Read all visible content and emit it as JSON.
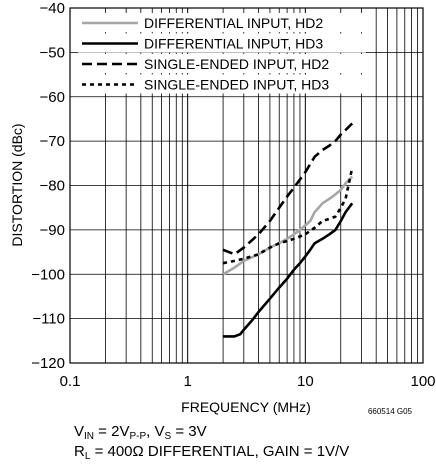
{
  "chart_data": {
    "type": "line",
    "xlabel": "FREQUENCY (MHz)",
    "ylabel": "DISTORTION (dBc)",
    "xscale": "log",
    "xlim": [
      0.1,
      100
    ],
    "ylim": [
      -120,
      -40
    ],
    "x_tick_labels": [
      "0.1",
      "1",
      "10",
      "100"
    ],
    "y_tick_labels": [
      "−120",
      "−110",
      "−100",
      "−90",
      "−80",
      "−70",
      "−60",
      "−50",
      "−40"
    ],
    "grid": true,
    "legend_position": "top-right",
    "figure_id": "660514 G05",
    "series": [
      {
        "name": "DIFFERENTIAL INPUT, HD2",
        "color": "#a6a6a6",
        "style": "solid",
        "x": [
          2,
          2.5,
          3,
          4,
          5,
          6,
          7,
          8,
          9,
          10,
          11,
          12,
          14,
          16,
          18,
          20,
          22,
          25
        ],
        "y": [
          -100,
          -98.5,
          -97,
          -95.5,
          -94,
          -93,
          -92,
          -91,
          -90,
          -89,
          -88,
          -86,
          -84,
          -83,
          -82,
          -81,
          -79.5,
          -78
        ]
      },
      {
        "name": "DIFFERENTIAL INPUT, HD3",
        "color": "#000000",
        "style": "solid",
        "x": [
          2,
          2.5,
          2.8,
          3,
          3.5,
          4,
          5,
          6,
          7,
          8,
          9,
          10,
          11,
          12,
          14,
          16,
          18,
          20,
          22,
          25
        ],
        "y": [
          -114,
          -114,
          -113.5,
          -112.5,
          -110.5,
          -108.5,
          -105.5,
          -103,
          -101,
          -99,
          -97.5,
          -96,
          -94.5,
          -93,
          -92,
          -91,
          -90,
          -88,
          -86,
          -84
        ]
      },
      {
        "name": "SINGLE-ENDED INPUT, HD2",
        "color": "#000000",
        "style": "dashed",
        "x": [
          2,
          2.5,
          3,
          4,
          5,
          6,
          7,
          8,
          10,
          12,
          14,
          16,
          18,
          20,
          22,
          25
        ],
        "y": [
          -94.5,
          -95.5,
          -94,
          -91,
          -88,
          -85,
          -82.5,
          -80.5,
          -77,
          -73.5,
          -72,
          -71,
          -70,
          -68.5,
          -67.5,
          -66
        ]
      },
      {
        "name": "SINGLE-ENDED INPUT, HD3",
        "color": "#000000",
        "style": "dotted",
        "x": [
          2,
          2.5,
          3,
          4,
          5,
          6,
          7,
          8,
          10,
          12,
          14,
          16,
          18,
          20,
          22,
          25
        ],
        "y": [
          -97.5,
          -97,
          -96.5,
          -95.5,
          -94,
          -93,
          -92.5,
          -92,
          -91,
          -89.5,
          -88,
          -87.5,
          -87,
          -85,
          -83,
          -76
        ]
      }
    ]
  },
  "notes": {
    "line1": {
      "v_in": "V",
      "v_in_sub": "IN",
      "v_in_eq": " = 2V",
      "v_in_unit_sub": "P-P",
      "vs_sep": ", V",
      "vs_sub": "S",
      "vs_val": " = 3V"
    },
    "line2": {
      "r": "R",
      "r_sub": "L",
      "rest": " = 400Ω DIFFERENTIAL, GAIN = 1V/V"
    }
  }
}
